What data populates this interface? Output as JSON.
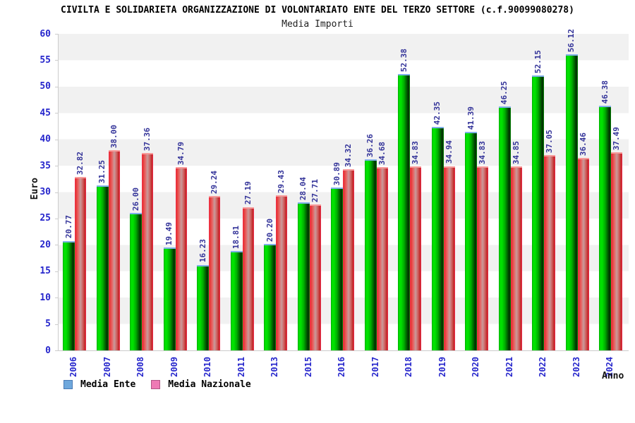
{
  "header": {
    "title": "CIVILTA E SOLIDARIETA ORGANIZZAZIONE DI VOLONTARIATO ENTE DEL TERZO SETTORE (c.f.90099080278)",
    "subtitle": "Media Importi"
  },
  "axes": {
    "y_label": "Euro",
    "x_label": "Anno",
    "y_ticks": [
      0,
      5,
      10,
      15,
      20,
      25,
      30,
      35,
      40,
      45,
      50,
      55,
      60
    ]
  },
  "legend": {
    "items": [
      {
        "label": "Media Ente",
        "swatch_fill": "#6fa8dc",
        "swatch_border": "#4a7ab5"
      },
      {
        "label": "Media Nazionale",
        "swatch_fill": "#ee7ab5",
        "swatch_border": "#b05585"
      }
    ]
  },
  "colors": {
    "bar_ente": "#00cc00",
    "bar_ente_cap": "#7fb0e8",
    "bar_nazionale": "#dd2222",
    "bar_nazionale_cap": "#f79a9a",
    "tick_label": "#2626cc",
    "value_label": "#333399",
    "band_gray": "#f1f1f1"
  },
  "chart_data": {
    "type": "bar",
    "title": "Media Importi",
    "suptitle": "CIVILTA E SOLIDARIETA ORGANIZZAZIONE DI VOLONTARIATO ENTE DEL TERZO SETTORE (c.f.90099080278)",
    "xlabel": "Anno",
    "ylabel": "Euro",
    "ylim": [
      0,
      60
    ],
    "grid": "horizontal-bands",
    "legend_position": "bottom-left",
    "value_labels": "rotated-90-above-bars, two decimals",
    "categories": [
      "2006",
      "2007",
      "2008",
      "2009",
      "2010",
      "2011",
      "2013",
      "2015",
      "2016",
      "2017",
      "2018",
      "2019",
      "2020",
      "2021",
      "2022",
      "2023",
      "2024"
    ],
    "series": [
      {
        "name": "Media Ente",
        "values": [
          20.77,
          31.25,
          26.0,
          19.49,
          16.23,
          18.81,
          20.2,
          28.04,
          30.89,
          36.26,
          52.38,
          42.35,
          41.39,
          46.25,
          52.15,
          56.12,
          46.38
        ]
      },
      {
        "name": "Media Nazionale",
        "values": [
          32.82,
          38.0,
          37.36,
          34.79,
          29.24,
          27.19,
          29.43,
          27.71,
          34.32,
          34.68,
          34.83,
          34.94,
          34.83,
          34.85,
          37.05,
          36.46,
          37.49
        ]
      }
    ]
  }
}
